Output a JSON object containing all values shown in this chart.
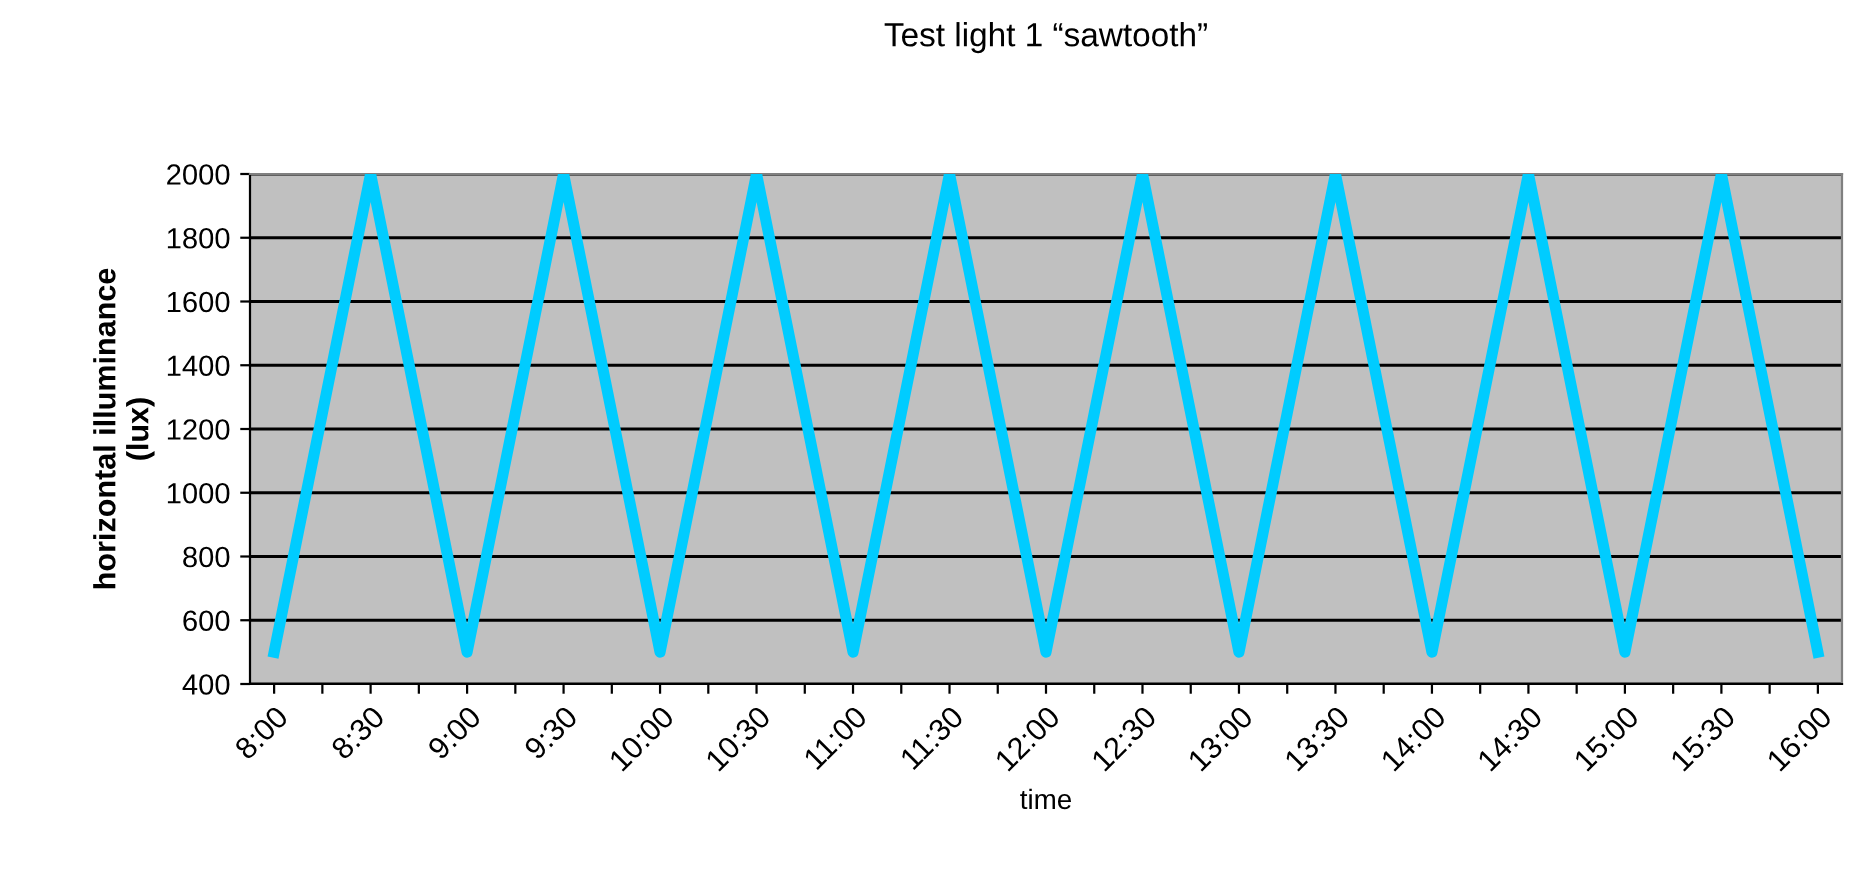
{
  "chart_data": {
    "type": "line",
    "title": "Test light 1 “sawtooth”",
    "xlabel": "time",
    "ylabel": "horizontal illuminance\n(lux)",
    "categories": [
      "8:00",
      null,
      "8:30",
      null,
      "9:00",
      null,
      "9:30",
      null,
      "10:00",
      null,
      "10:30",
      null,
      "11:00",
      null,
      "11:30",
      null,
      "12:00",
      null,
      "12:30",
      null,
      "13:00",
      null,
      "13:30",
      null,
      "14:00",
      null,
      "14:30",
      null,
      "15:00",
      null,
      "15:30",
      null,
      "16:00"
    ],
    "series": [
      {
        "color": "#00ccff",
        "values": [
          500,
          1250,
          2000,
          1250,
          500,
          1250,
          2000,
          1250,
          500,
          1250,
          2000,
          1250,
          500,
          1250,
          2000,
          1250,
          500,
          1250,
          2000,
          1250,
          500,
          1250,
          2000,
          1250,
          500,
          1250,
          2000,
          1250,
          500,
          1250,
          2000,
          1250,
          500
        ]
      }
    ],
    "ylim": [
      400,
      2000
    ],
    "yticks": [
      400,
      600,
      800,
      1000,
      1200,
      1400,
      1600,
      1800,
      2000
    ],
    "grid": "y",
    "legend": false,
    "marker": "none",
    "line_style": "solid"
  }
}
